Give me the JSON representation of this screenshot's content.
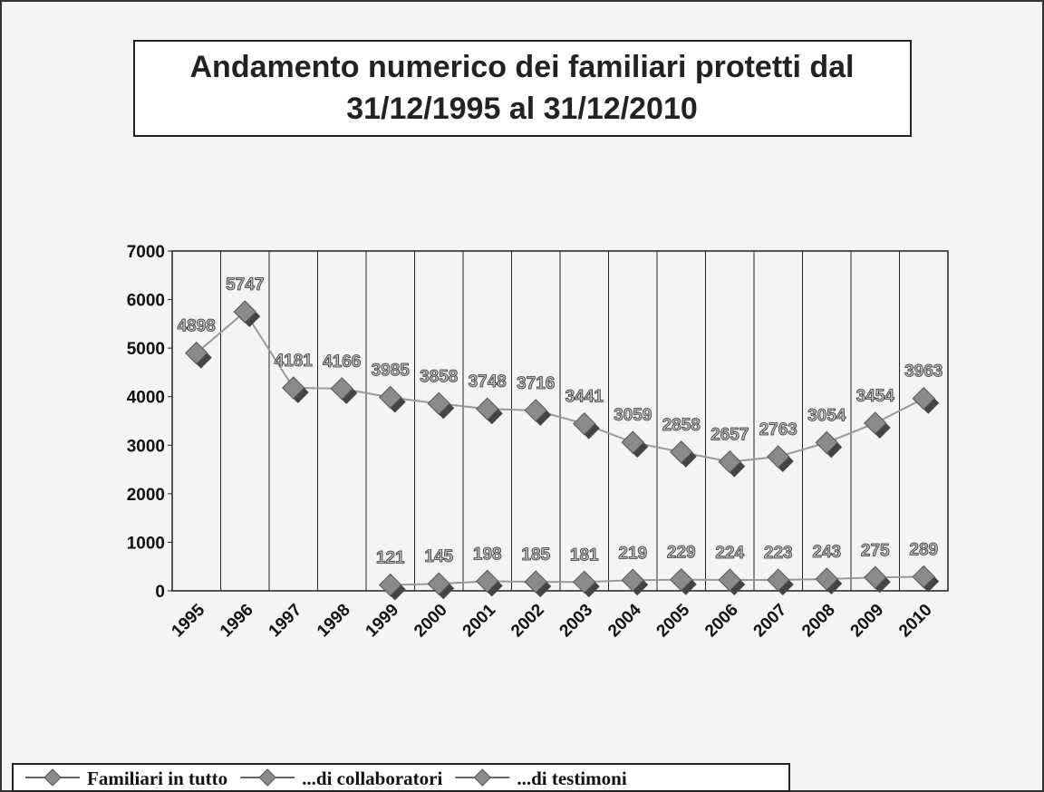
{
  "chart_data": {
    "type": "line",
    "title": "Andamento numerico dei familiari protetti dal 31/12/1995 al 31/12/2010",
    "categories": [
      "1995",
      "1996",
      "1997",
      "1998",
      "1999",
      "2000",
      "2001",
      "2002",
      "2003",
      "2004",
      "2005",
      "2006",
      "2007",
      "2008",
      "2009",
      "2010"
    ],
    "series": [
      {
        "name": "Familiari in tutto",
        "color": "#8a8a8a",
        "values": [
          4898,
          5747,
          4181,
          4166,
          3985,
          3858,
          3748,
          3716,
          3441,
          3059,
          2858,
          2657,
          2763,
          3054,
          3454,
          3963
        ]
      },
      {
        "name": "...di collaboratori",
        "color": "#8a8a8a",
        "values": [
          null,
          null,
          null,
          null,
          null,
          null,
          null,
          null,
          null,
          null,
          null,
          null,
          null,
          null,
          null,
          null
        ]
      },
      {
        "name": "...di testimoni",
        "color": "#8a8a8a",
        "values": [
          null,
          null,
          null,
          null,
          121,
          145,
          198,
          185,
          181,
          219,
          229,
          224,
          223,
          243,
          275,
          289
        ]
      }
    ],
    "ylim": [
      0,
      7000
    ],
    "yticks": [
      0,
      1000,
      2000,
      3000,
      4000,
      5000,
      6000,
      7000
    ],
    "grid": true
  }
}
